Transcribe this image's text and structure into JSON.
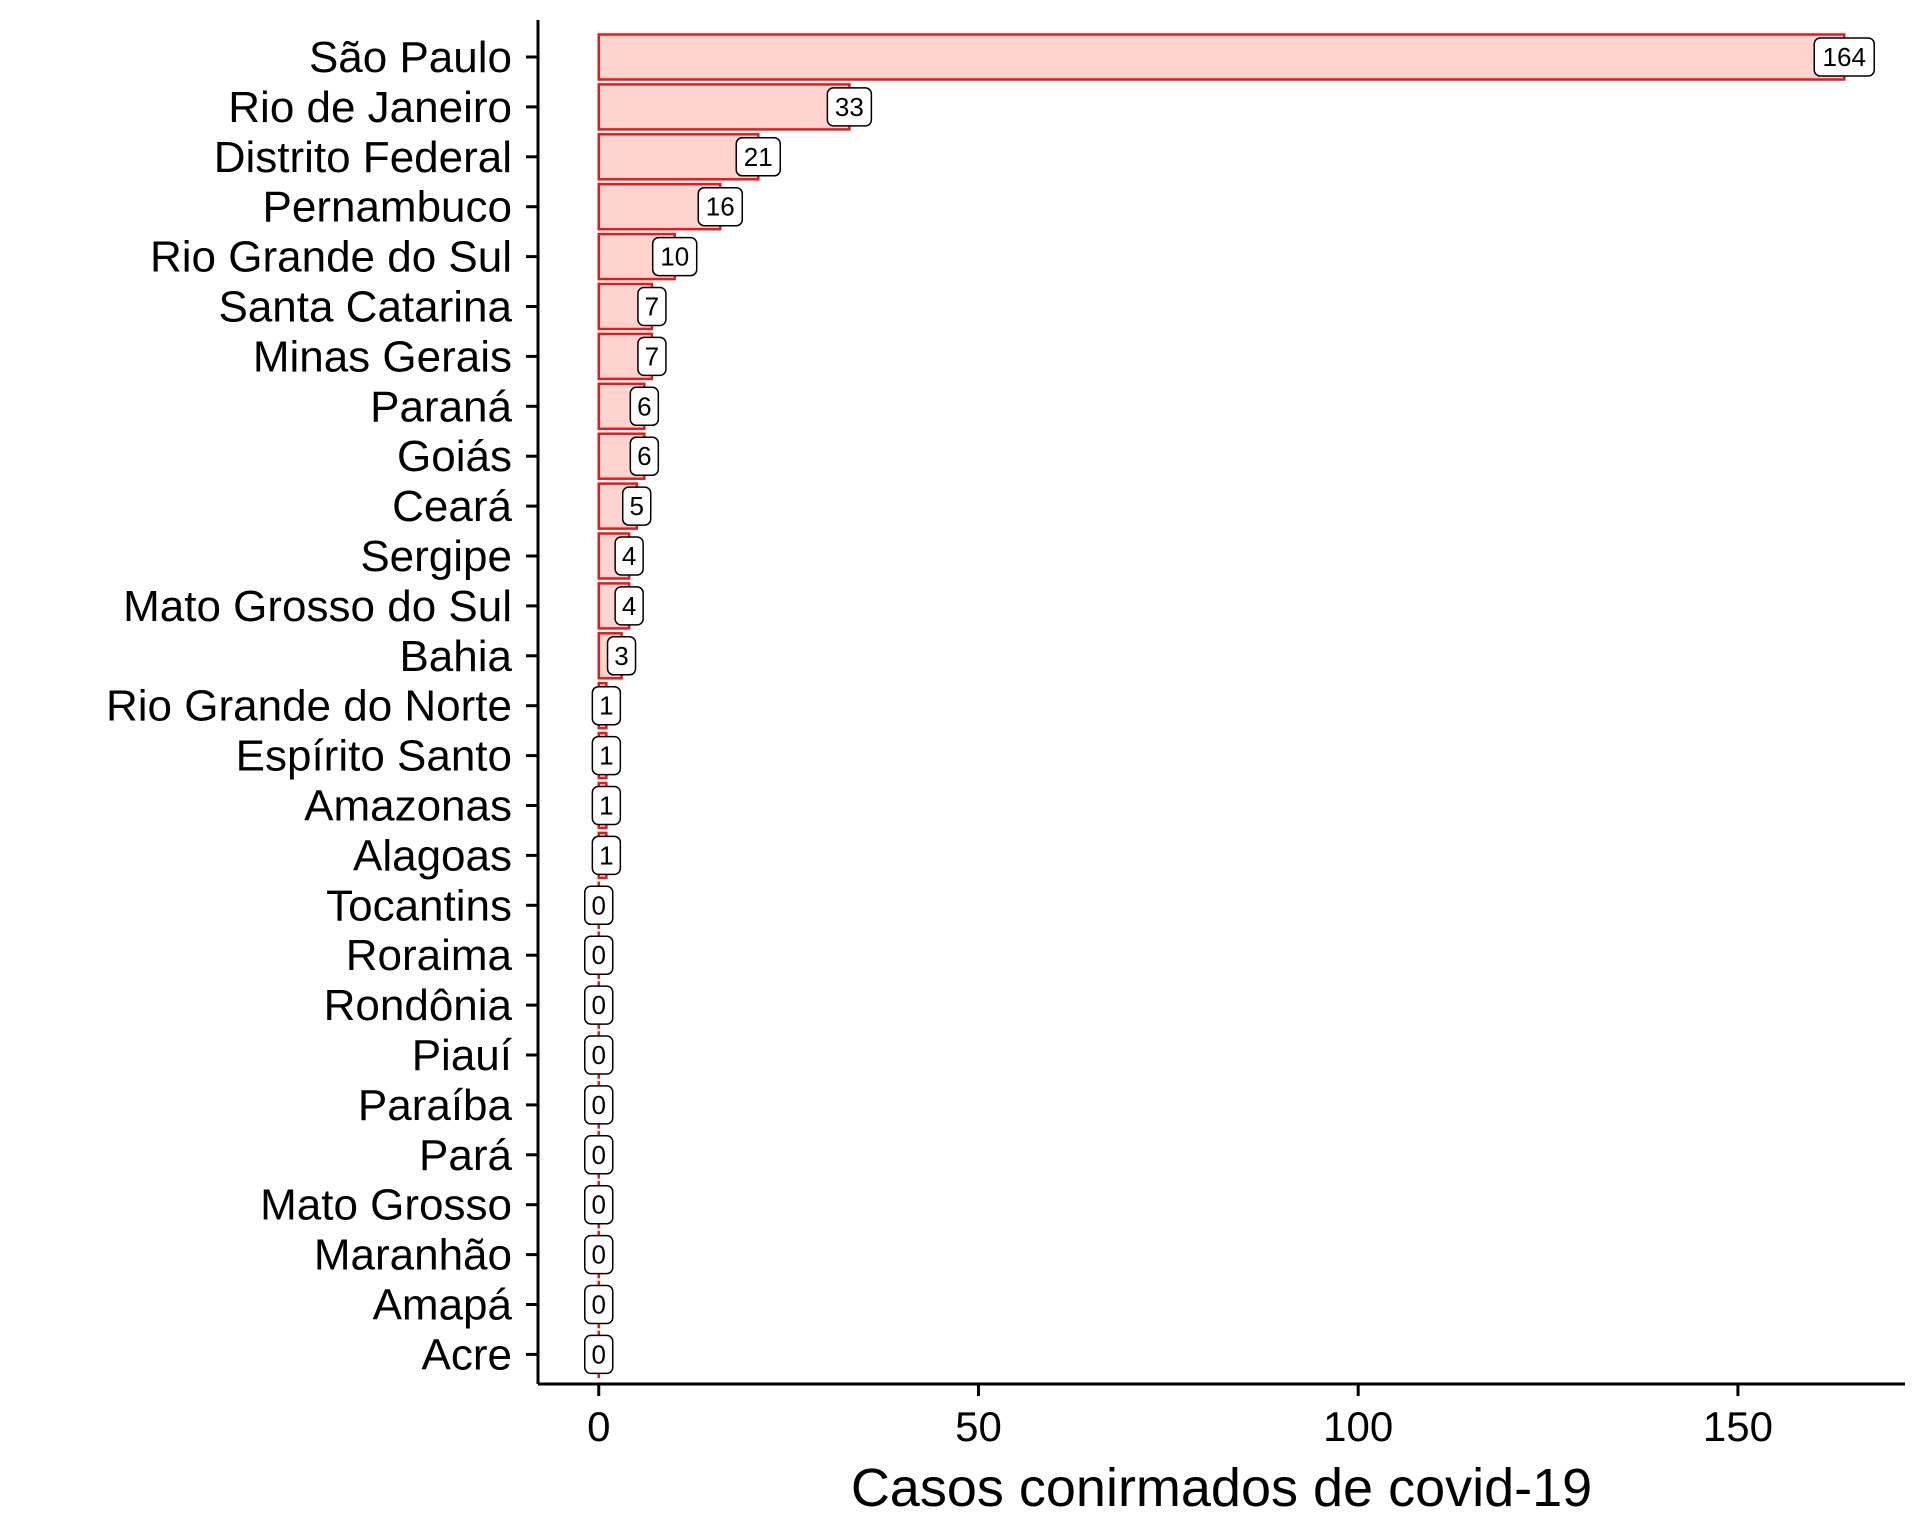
{
  "chart_data": {
    "type": "bar",
    "orientation": "horizontal",
    "categories": [
      "São Paulo",
      "Rio de Janeiro",
      "Distrito Federal",
      "Pernambuco",
      "Rio Grande do Sul",
      "Santa Catarina",
      "Minas Gerais",
      "Paraná",
      "Goiás",
      "Ceará",
      "Sergipe",
      "Mato Grosso do Sul",
      "Bahia",
      "Rio Grande do Norte",
      "Espírito Santo",
      "Amazonas",
      "Alagoas",
      "Tocantins",
      "Roraima",
      "Rondônia",
      "Piauí",
      "Paraíba",
      "Pará",
      "Mato Grosso",
      "Maranhão",
      "Amapá",
      "Acre"
    ],
    "values": [
      164,
      33,
      21,
      16,
      10,
      7,
      7,
      6,
      6,
      5,
      4,
      4,
      3,
      1,
      1,
      1,
      1,
      0,
      0,
      0,
      0,
      0,
      0,
      0,
      0,
      0,
      0
    ],
    "title": "",
    "xlabel": "Casos conirmados de covid-19",
    "ylabel": "",
    "xlim": [
      -8,
      172
    ],
    "xticks": [
      0,
      50,
      100,
      150
    ],
    "grid": false,
    "bar_fill": "#ffd4cf",
    "bar_stroke": "#e41a1c"
  }
}
